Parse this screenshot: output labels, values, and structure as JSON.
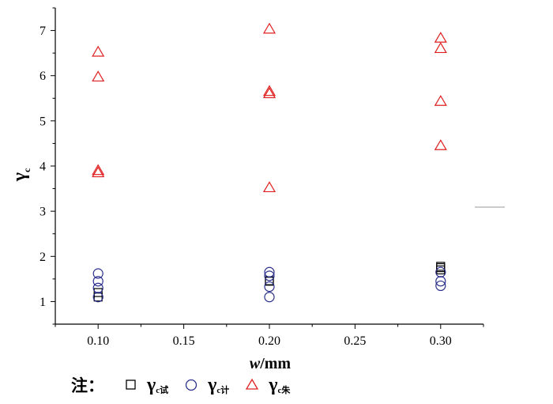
{
  "chart_data": {
    "type": "scatter",
    "xlabel_var": "w",
    "xlabel_unit": "/mm",
    "ylabel_symbol": "γ",
    "ylabel_sub": "c",
    "xlim": [
      0.075,
      0.325
    ],
    "ylim": [
      0.5,
      7.5
    ],
    "xticks": [
      "0.10",
      "0.15",
      "0.20",
      "0.25",
      "0.30"
    ],
    "yticks": [
      "1",
      "2",
      "3",
      "4",
      "5",
      "6",
      "7"
    ],
    "series": [
      {
        "key": "test",
        "marker": "square",
        "color": "#000000",
        "points": [
          [
            0.1,
            1.1
          ],
          [
            0.1,
            1.2
          ],
          [
            0.2,
            1.45
          ],
          [
            0.2,
            1.46
          ],
          [
            0.3,
            1.7
          ],
          [
            0.3,
            1.75
          ],
          [
            0.3,
            1.78
          ]
        ]
      },
      {
        "key": "calc",
        "marker": "circle",
        "color": "#2b2f8c",
        "points": [
          [
            0.1,
            1.1
          ],
          [
            0.1,
            1.3
          ],
          [
            0.1,
            1.45
          ],
          [
            0.1,
            1.62
          ],
          [
            0.2,
            1.1
          ],
          [
            0.2,
            1.33
          ],
          [
            0.2,
            1.57
          ],
          [
            0.2,
            1.65
          ],
          [
            0.3,
            1.35
          ],
          [
            0.3,
            1.45
          ],
          [
            0.3,
            1.65
          ]
        ]
      },
      {
        "key": "zhu",
        "marker": "triangle",
        "color": "#e02020",
        "points": [
          [
            0.1,
            3.85
          ],
          [
            0.1,
            3.9
          ],
          [
            0.1,
            5.97
          ],
          [
            0.1,
            6.52
          ],
          [
            0.2,
            3.52
          ],
          [
            0.2,
            5.6
          ],
          [
            0.2,
            5.65
          ],
          [
            0.2,
            7.03
          ],
          [
            0.3,
            4.45
          ],
          [
            0.3,
            5.43
          ],
          [
            0.3,
            6.6
          ],
          [
            0.3,
            6.83
          ]
        ]
      }
    ]
  },
  "legend": {
    "note": "注：",
    "items": [
      {
        "key": "test",
        "symbol": "γ",
        "sub": "c试"
      },
      {
        "key": "calc",
        "symbol": "γ",
        "sub": "c计"
      },
      {
        "key": "zhu",
        "symbol": "γ",
        "sub": "c朱"
      }
    ]
  }
}
